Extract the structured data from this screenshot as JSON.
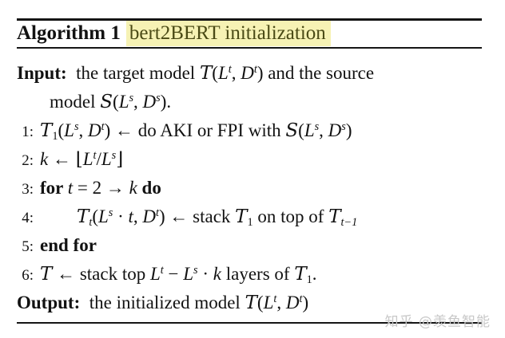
{
  "figure": {
    "title_label": "Algorithm 1",
    "title_highlight": "bert2BERT initialization"
  },
  "colors": {
    "highlight_bg": "#f6f2b4",
    "highlight_text": "#4a4a15",
    "ink": "#121212",
    "rule": "#151515",
    "watermark": "#c8c8c8"
  },
  "watermark": {
    "text": "知乎 @羡鱼智能"
  },
  "algorithm": {
    "lines": [
      {
        "name": "input-line",
        "num": "",
        "indent": 0,
        "parts": [
          [
            "b",
            "Input:"
          ],
          [
            "p",
            "  the target model "
          ],
          [
            "c",
            "T"
          ],
          [
            "p",
            "("
          ],
          [
            "i",
            "L"
          ],
          [
            "u",
            "t"
          ],
          [
            "p",
            ", "
          ],
          [
            "i",
            "D"
          ],
          [
            "u",
            "t"
          ],
          [
            "p",
            ") and the source"
          ]
        ]
      },
      {
        "name": "input-line-continuation",
        "num": "",
        "indent": 2,
        "parts": [
          [
            "p",
            "model "
          ],
          [
            "c",
            "S"
          ],
          [
            "p",
            "("
          ],
          [
            "i",
            "L"
          ],
          [
            "u",
            "s"
          ],
          [
            "p",
            ", "
          ],
          [
            "i",
            "D"
          ],
          [
            "u",
            "s"
          ],
          [
            "p",
            ")."
          ]
        ]
      },
      {
        "name": "step-1",
        "num": "1:",
        "indent": 0,
        "parts": [
          [
            "c",
            "T"
          ],
          [
            "d",
            "1"
          ],
          [
            "p",
            "("
          ],
          [
            "i",
            "L"
          ],
          [
            "u",
            "s"
          ],
          [
            "p",
            ", "
          ],
          [
            "i",
            "D"
          ],
          [
            "u",
            "t"
          ],
          [
            "p",
            ") ← do AKI or FPI with "
          ],
          [
            "c",
            "S"
          ],
          [
            "p",
            "("
          ],
          [
            "i",
            "L"
          ],
          [
            "u",
            "s"
          ],
          [
            "p",
            ", "
          ],
          [
            "i",
            "D"
          ],
          [
            "u",
            "s"
          ],
          [
            "p",
            ")"
          ]
        ]
      },
      {
        "name": "step-2",
        "num": "2:",
        "indent": 0,
        "parts": [
          [
            "i",
            "k"
          ],
          [
            "p",
            " ← ⌊"
          ],
          [
            "i",
            "L"
          ],
          [
            "u",
            "t"
          ],
          [
            "p",
            "/"
          ],
          [
            "i",
            "L"
          ],
          [
            "u",
            "s"
          ],
          [
            "p",
            "⌋"
          ]
        ]
      },
      {
        "name": "step-3",
        "num": "3:",
        "indent": 0,
        "parts": [
          [
            "b",
            "for "
          ],
          [
            "i",
            "t"
          ],
          [
            "p",
            " = 2 → "
          ],
          [
            "i",
            "k"
          ],
          [
            "b",
            " do"
          ]
        ]
      },
      {
        "name": "step-4",
        "num": "4:",
        "indent": 1,
        "parts": [
          [
            "c",
            "T"
          ],
          [
            "e",
            "t"
          ],
          [
            "p",
            "("
          ],
          [
            "i",
            "L"
          ],
          [
            "u",
            "s"
          ],
          [
            "p",
            " · "
          ],
          [
            "i",
            "t"
          ],
          [
            "p",
            ", "
          ],
          [
            "i",
            "D"
          ],
          [
            "u",
            "t"
          ],
          [
            "p",
            ") ← stack "
          ],
          [
            "c",
            "T"
          ],
          [
            "d",
            "1"
          ],
          [
            "p",
            " on top of "
          ],
          [
            "c",
            "T"
          ],
          [
            "e",
            "t−1"
          ]
        ]
      },
      {
        "name": "step-5",
        "num": "5:",
        "indent": 0,
        "parts": [
          [
            "b",
            "end for"
          ]
        ]
      },
      {
        "name": "step-6",
        "num": "6:",
        "indent": 0,
        "parts": [
          [
            "c",
            "T"
          ],
          [
            "p",
            " ← stack top "
          ],
          [
            "i",
            "L"
          ],
          [
            "u",
            "t"
          ],
          [
            "p",
            " − "
          ],
          [
            "i",
            "L"
          ],
          [
            "u",
            "s"
          ],
          [
            "p",
            " · "
          ],
          [
            "i",
            "k"
          ],
          [
            "p",
            " layers of "
          ],
          [
            "c",
            "T"
          ],
          [
            "d",
            "1"
          ],
          [
            "p",
            "."
          ]
        ]
      },
      {
        "name": "output-line",
        "num": "",
        "indent": 0,
        "parts": [
          [
            "b",
            "Output:"
          ],
          [
            "p",
            "  the initialized model "
          ],
          [
            "c",
            "T"
          ],
          [
            "p",
            "("
          ],
          [
            "i",
            "L"
          ],
          [
            "u",
            "t"
          ],
          [
            "p",
            ", "
          ],
          [
            "i",
            "D"
          ],
          [
            "u",
            "t"
          ],
          [
            "p",
            ")"
          ]
        ]
      }
    ]
  }
}
